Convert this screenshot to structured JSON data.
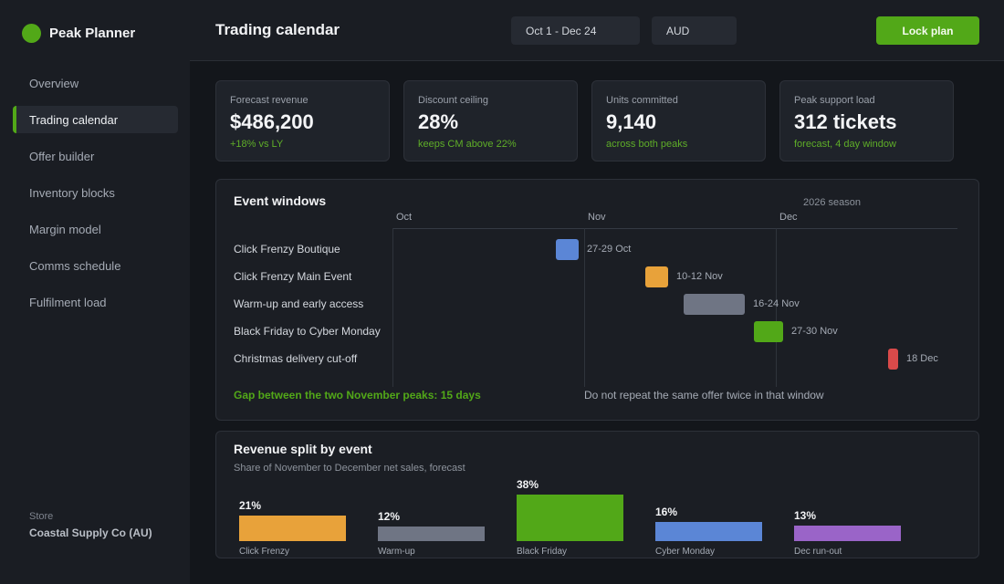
{
  "brand": {
    "name": "Peak Planner",
    "logo_color": "#52a818"
  },
  "sidebar": {
    "items": [
      {
        "label": "Overview",
        "active": false
      },
      {
        "label": "Trading calendar",
        "active": true
      },
      {
        "label": "Offer builder",
        "active": false
      },
      {
        "label": "Inventory blocks",
        "active": false
      },
      {
        "label": "Margin model",
        "active": false
      },
      {
        "label": "Comms schedule",
        "active": false
      },
      {
        "label": "Fulfilment load",
        "active": false
      }
    ],
    "store_label": "Store",
    "store_name": "Coastal Supply Co (AU)"
  },
  "header": {
    "title": "Trading calendar",
    "date_range": "Oct 1 - Dec 24",
    "currency": "AUD",
    "lock_button": "Lock plan"
  },
  "kpis": [
    {
      "label": "Forecast revenue",
      "value": "$486,200",
      "sub": "+18% vs LY"
    },
    {
      "label": "Discount ceiling",
      "value": "28%",
      "sub": "keeps CM above 22%"
    },
    {
      "label": "Units committed",
      "value": "9,140",
      "sub": "across both peaks"
    },
    {
      "label": "Peak support load",
      "value": "312 tickets",
      "sub": "forecast, 4 day window"
    }
  ],
  "events": {
    "title": "Event windows",
    "season": "2026 season",
    "months": [
      "Oct",
      "Nov",
      "Dec"
    ],
    "rows": [
      {
        "label": "Click Frenzy Boutique",
        "dates": "27-29 Oct",
        "start": "2026-10-27",
        "end": "2026-10-29",
        "color": "#5b86d6"
      },
      {
        "label": "Click Frenzy Main Event",
        "dates": "10-12 Nov",
        "start": "2026-11-10",
        "end": "2026-11-12",
        "color": "#e8a23a"
      },
      {
        "label": "Warm-up and early access",
        "dates": "16-24 Nov",
        "start": "2026-11-16",
        "end": "2026-11-24",
        "color": "#6f7584"
      },
      {
        "label": "Black Friday to Cyber Monday",
        "dates": "27-30 Nov",
        "start": "2026-11-27",
        "end": "2026-11-30",
        "color": "#52a818"
      },
      {
        "label": "Christmas delivery cut-off",
        "dates": "18 Dec",
        "start": "2026-12-18",
        "end": "2026-12-18",
        "color": "#d94a4a"
      }
    ],
    "gap_note": "Gap between the two November peaks: 15 days",
    "warning_note": "Do not repeat the same offer twice in that window"
  },
  "revenue_split": {
    "title": "Revenue split by event",
    "subtitle": "Share of November to December net sales, forecast"
  },
  "chart_data": {
    "type": "bar",
    "title": "Revenue split by event",
    "subtitle": "Share of November to December net sales, forecast",
    "categories": [
      "Click Frenzy",
      "Warm-up",
      "Black Friday",
      "Cyber Monday",
      "Dec run-out"
    ],
    "values": [
      21,
      12,
      38,
      16,
      13
    ],
    "labels": [
      "21%",
      "12%",
      "38%",
      "16%",
      "13%"
    ],
    "colors": [
      "#e8a23a",
      "#6f7584",
      "#52a818",
      "#5b86d6",
      "#9a64c8"
    ],
    "ylim": [
      0,
      38
    ],
    "grid": false
  }
}
